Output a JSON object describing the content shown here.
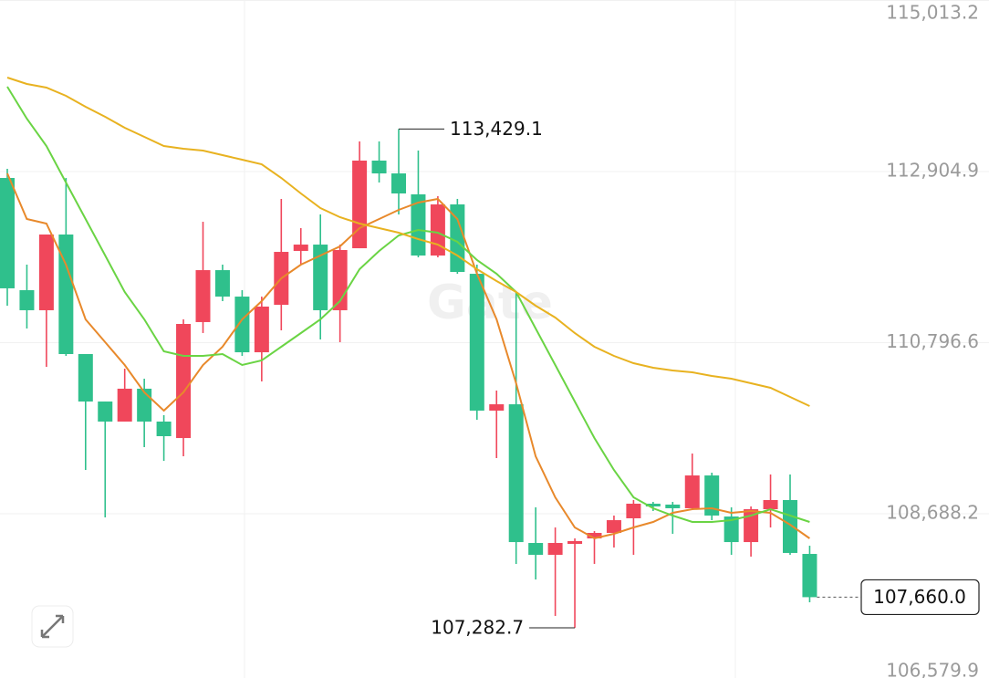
{
  "chart_data": {
    "type": "candlestick",
    "watermark": "Gate",
    "ylim": [
      106664,
      115019
    ],
    "yticks": [
      {
        "value": 115013.2,
        "label": "115,013.2"
      },
      {
        "value": 112904.9,
        "label": "112,904.9"
      },
      {
        "value": 110796.6,
        "label": "110,796.6"
      },
      {
        "value": 108688.2,
        "label": "108,688.2"
      },
      {
        "value": 106579.9,
        "label": "106,579.9"
      }
    ],
    "grid": true,
    "up_color": "#f0475b",
    "down_color": "#2fc08c",
    "open": [
      112826,
      111443,
      111196,
      112129,
      110656,
      110071,
      109824,
      110229,
      109824,
      109621,
      111050,
      111690,
      111364,
      110678,
      111263,
      111927,
      112005,
      111196,
      111960,
      113040,
      112882,
      112624,
      111870,
      112500,
      111645,
      109959,
      110037,
      108328,
      108182,
      108317,
      108384,
      108452,
      108632,
      108812,
      108801,
      108756,
      109160,
      108654,
      108339,
      108744,
      108857,
      108193
    ],
    "high": [
      112939,
      111758,
      112129,
      112826,
      110656,
      110071,
      110476,
      110352,
      109903,
      111083,
      112286,
      111758,
      111443,
      111364,
      112568,
      112208,
      112376,
      112005,
      113276,
      113276,
      113429.1,
      113164,
      112601,
      112568,
      111758,
      110206,
      111421,
      108767,
      108519,
      108384,
      108474,
      108666,
      108857,
      108834,
      108834,
      109430,
      109194,
      108767,
      108778,
      109172,
      109172,
      108294
    ],
    "low": [
      111252,
      110971,
      110499,
      110633,
      109228,
      108643,
      109824,
      109509,
      109340,
      109396,
      110915,
      111308,
      110633,
      110319,
      110948,
      111758,
      110836,
      110802,
      111960,
      112770,
      112376,
      111848,
      111848,
      111645,
      109846,
      109374,
      108070,
      107878,
      107429,
      107282.7,
      108070,
      108272,
      108182,
      108722,
      108441,
      108744,
      108609,
      108182,
      108160,
      108519,
      108182,
      107597
    ],
    "close": [
      111466,
      111196,
      112129,
      110656,
      110071,
      109824,
      110229,
      109824,
      109644,
      111027,
      111690,
      111364,
      110678,
      111241,
      111915,
      112005,
      111196,
      111938,
      113040,
      112882,
      112635,
      111870,
      112500,
      111668,
      109959,
      110037,
      108339,
      108182,
      108328,
      108351,
      108452,
      108609,
      108812,
      108778,
      108756,
      109160,
      108666,
      108339,
      108744,
      108857,
      108205,
      107660
    ],
    "high_label": "113,429.1",
    "low_label": "107,282.7",
    "last_price_label": "107,660.0",
    "moving_averages": [
      {
        "color": "#e8892b",
        "values": [
          112882,
          112320,
          112264,
          111758,
          111083,
          110802,
          110521,
          110184,
          109959,
          110184,
          110521,
          110746,
          111083,
          111308,
          111589,
          111758,
          111870,
          111983,
          112208,
          112320,
          112433,
          112523,
          112568,
          112320,
          111645,
          111083,
          110296,
          109396,
          108890,
          108519,
          108384,
          108441,
          108519,
          108587,
          108699,
          108744,
          108756,
          108699,
          108722,
          108699,
          108553,
          108384
        ]
      },
      {
        "color": "#6ad444",
        "values": [
          113951,
          113557,
          113220,
          112770,
          112320,
          111870,
          111421,
          111083,
          110690,
          110633,
          110633,
          110656,
          110521,
          110577,
          110746,
          110915,
          111083,
          111308,
          111702,
          111927,
          112118,
          112185,
          112152,
          112039,
          111814,
          111645,
          111421,
          110971,
          110521,
          110071,
          109621,
          109228,
          108890,
          108756,
          108666,
          108587,
          108587,
          108609,
          108666,
          108744,
          108666,
          108587
        ]
      },
      {
        "color": "#e8b220",
        "values": [
          114063,
          113984,
          113939,
          113838,
          113703,
          113580,
          113445,
          113332,
          113220,
          113186,
          113164,
          113107,
          113051,
          112995,
          112826,
          112635,
          112455,
          112343,
          112264,
          112208,
          112152,
          112073,
          112005,
          111870,
          111702,
          111556,
          111421,
          111252,
          111106,
          110915,
          110746,
          110633,
          110543,
          110487,
          110454,
          110431,
          110386,
          110352,
          110296,
          110240,
          110127,
          110015
        ]
      }
    ]
  }
}
